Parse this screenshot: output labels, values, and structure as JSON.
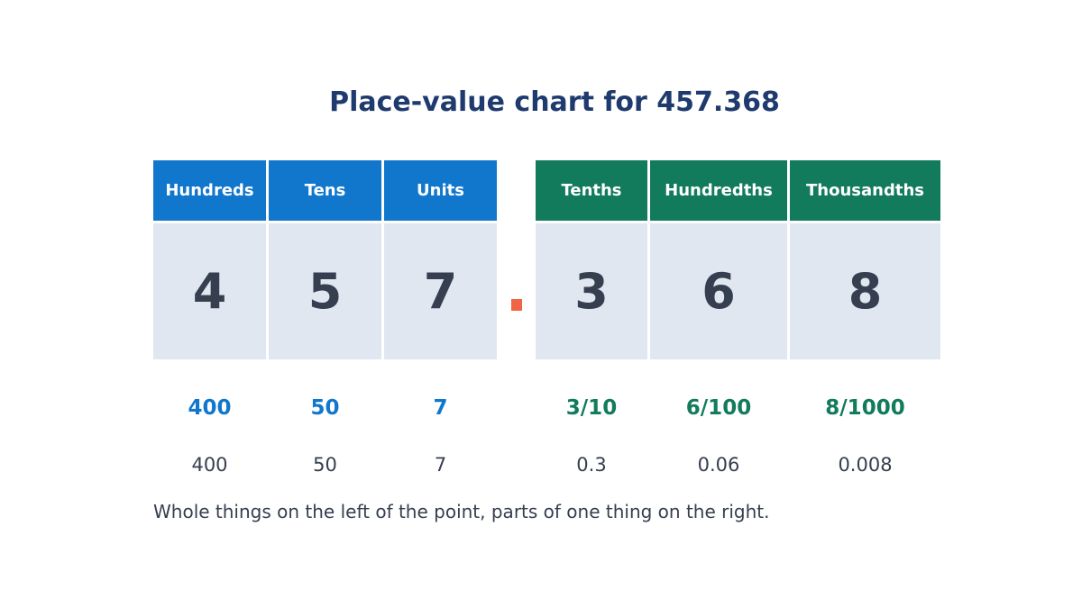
{
  "title": "Place-value chart for 457.368",
  "colors": {
    "whole": "#1177cc",
    "fraction": "#127b5b",
    "point": "#f26446",
    "cell": "#e1e7f1",
    "title": "#1f3a6e"
  },
  "columns": [
    {
      "header": "Hundreds",
      "digit": "4",
      "fraction": "400",
      "decimal": "400"
    },
    {
      "header": "Tens",
      "digit": "5",
      "fraction": "50",
      "decimal": "50"
    },
    {
      "header": "Units",
      "digit": "7",
      "fraction": "7",
      "decimal": "7"
    },
    {
      "header": "Tenths",
      "digit": "3",
      "fraction": "3/10",
      "decimal": "0.3"
    },
    {
      "header": "Hundredths",
      "digit": "6",
      "fraction": "6/100",
      "decimal": "0.06"
    },
    {
      "header": "Thousandths",
      "digit": "8",
      "fraction": "8/1000",
      "decimal": "0.008"
    }
  ],
  "caption": "Whole things on the left of the point, parts of one thing on the right."
}
